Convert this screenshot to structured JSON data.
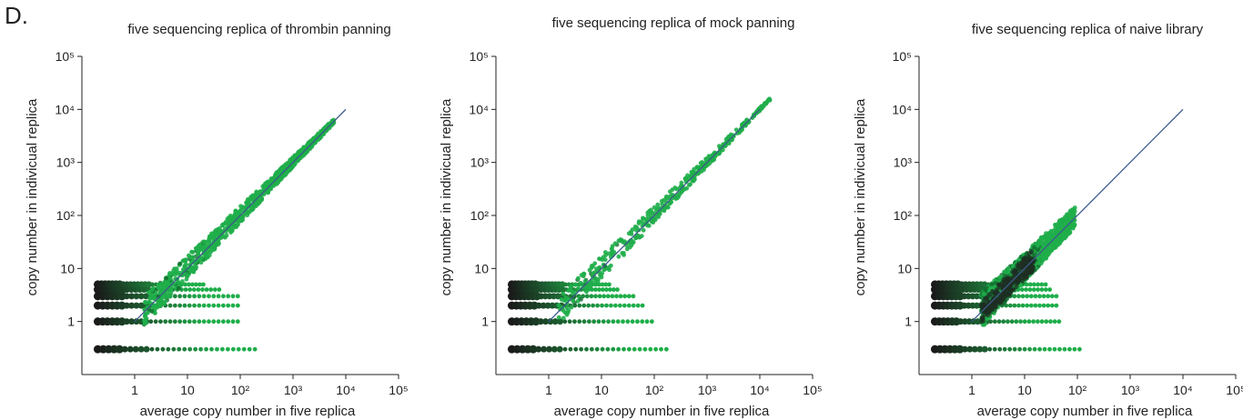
{
  "panel_label": "D.",
  "colors": {
    "dark": "#1a1a1a",
    "green": "#1fae4a",
    "mid": "#136b30",
    "fit_line": "#3c5a8c"
  },
  "chart_data": [
    {
      "type": "scatter",
      "title": "five sequencing replica of thrombin panning",
      "xlabel": "average copy number in five replica",
      "ylabel": "copy number in indivicual replica",
      "xscale": "log",
      "yscale": "log",
      "xlim": [
        0.1,
        100000
      ],
      "ylim": [
        0.1,
        100000
      ],
      "xticks": [
        "1",
        "10",
        "10²",
        "10³",
        "10⁴",
        "10⁵"
      ],
      "yticks": [
        "1",
        "10",
        "10²",
        "10³",
        "10⁴",
        "10⁵"
      ],
      "grid": false,
      "fit_line": [
        [
          1,
          1
        ],
        [
          10000,
          10000
        ]
      ],
      "x_max_dense": 6000,
      "spread_shape": "wide"
    },
    {
      "type": "scatter",
      "title": "five sequencing replica of mock panning",
      "xlabel": "average copy number in five replica",
      "ylabel": "copy number in indivicual replica",
      "xscale": "log",
      "yscale": "log",
      "xlim": [
        0.1,
        100000
      ],
      "ylim": [
        0.1,
        100000
      ],
      "xticks": [
        "1",
        "10",
        "10²",
        "10³",
        "10⁴",
        "10⁵"
      ],
      "yticks": [
        "1",
        "10",
        "10²",
        "10³",
        "10⁴",
        "10⁵"
      ],
      "grid": false,
      "fit_line": [
        [
          1,
          1
        ],
        [
          10000,
          10000
        ]
      ],
      "x_max_dense": 16000,
      "spread_shape": "sparse"
    },
    {
      "type": "scatter",
      "title": "five sequencing replica of naive library",
      "xlabel": "average copy number in five replica",
      "ylabel": "copy number in indivicual replica",
      "xscale": "log",
      "yscale": "log",
      "xlim": [
        0.1,
        100000
      ],
      "ylim": [
        0.1,
        100000
      ],
      "xticks": [
        "1",
        "10",
        "10²",
        "10³",
        "10⁴",
        "10⁵"
      ],
      "yticks": [
        "1",
        "10",
        "10²",
        "10³",
        "10⁴",
        "10⁵"
      ],
      "grid": false,
      "fit_line": [
        [
          1,
          1
        ],
        [
          10000,
          10000
        ]
      ],
      "x_max_dense": 90,
      "spread_shape": "dense"
    }
  ]
}
